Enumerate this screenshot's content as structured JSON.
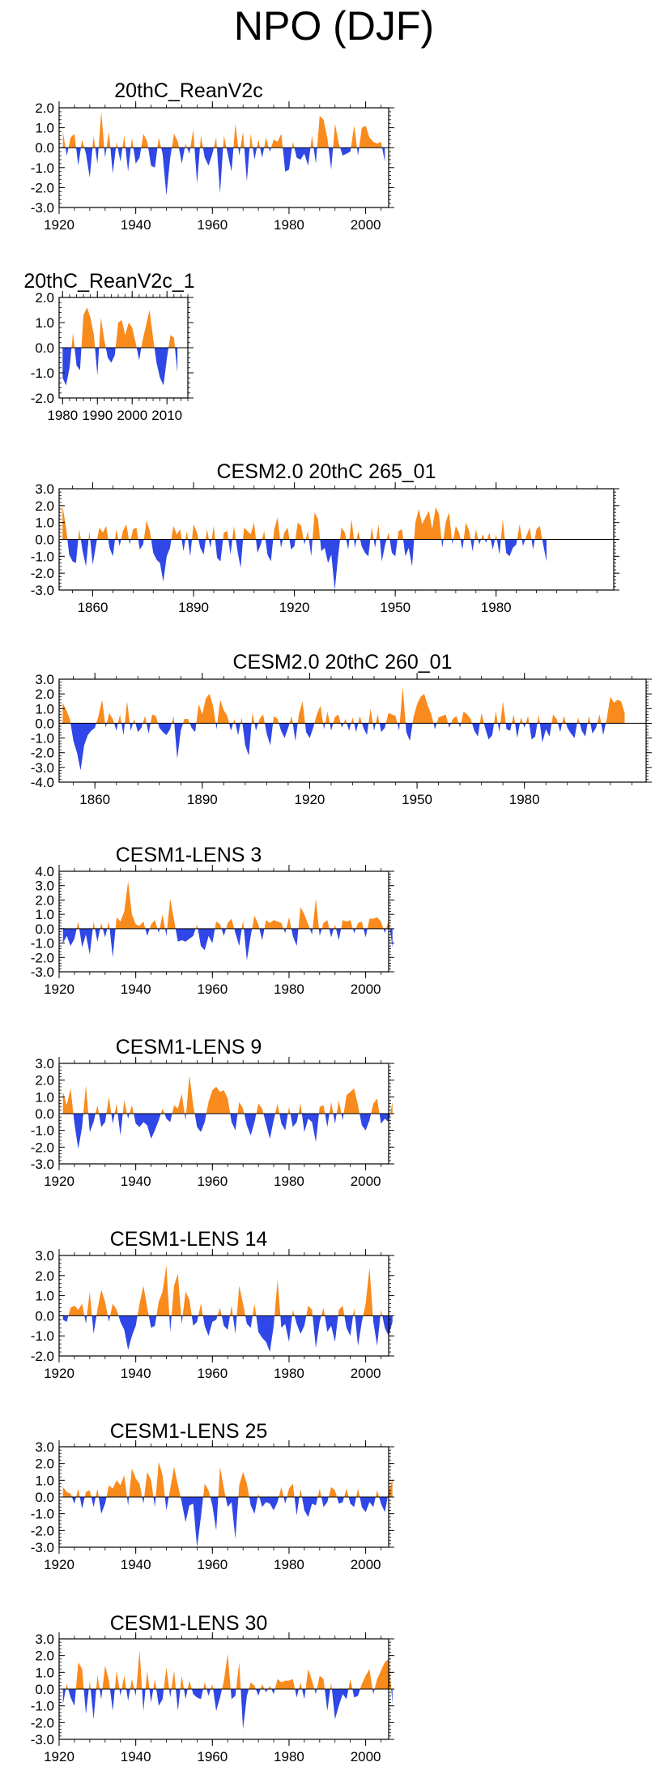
{
  "title": "NPO (DJF)",
  "colors": {
    "positive": "#f98a1c",
    "negative": "#2f47e6",
    "axis": "#000000"
  },
  "chart_data": [
    {
      "type": "area",
      "title": "20thC_ReanV2c",
      "xlim": [
        1920,
        2006
      ],
      "ylim": [
        -3.0,
        2.0
      ],
      "yticks": [
        -3.0,
        -2.0,
        -1.0,
        0.0,
        1.0,
        2.0
      ],
      "ytick_labels": [
        "-3.0",
        "-2.0",
        "-1.0",
        "0.0",
        "1.0",
        "2.0"
      ],
      "xticks": [
        1920,
        1940,
        1960,
        1980,
        2000
      ],
      "xtick_labels": [
        "1920",
        "1940",
        "1960",
        "1980",
        "2000"
      ],
      "x_start": 1921,
      "values": [
        0.8,
        -0.4,
        0.5,
        0.7,
        -0.9,
        0.4,
        -0.3,
        -1.5,
        0.6,
        -0.8,
        1.8,
        -0.5,
        0.8,
        -1.3,
        0.3,
        -0.7,
        0.6,
        -1.2,
        0.5,
        -0.8,
        -0.5,
        0.7,
        0.3,
        -0.9,
        -1.0,
        0.5,
        -0.3,
        -2.4,
        -0.5,
        0.7,
        0.3,
        -0.8,
        0.2,
        -0.3,
        0.9,
        -1.8,
        0.6,
        -0.5,
        -0.9,
        -0.3,
        0.5,
        -2.3,
        0.6,
        -0.3,
        -1.2,
        1.2,
        -0.4,
        0.8,
        -1.7,
        0.7,
        -0.6,
        0.4,
        -0.5,
        0.5,
        -0.2,
        0.4,
        0.3,
        0.7,
        -1.2,
        -1.1,
        0.3,
        -0.5,
        -0.6,
        -0.3,
        -0.9,
        0.6,
        -0.8,
        1.6,
        1.4,
        0.5,
        -1.1,
        1.2,
        0.2,
        -0.4,
        -0.3,
        -0.2,
        1.1,
        -0.4,
        1.0,
        1.1,
        0.5,
        0.3,
        0.2,
        0.3,
        -0.7
      ]
    },
    {
      "type": "area",
      "title": "20thC_ReanV2c_1",
      "xlim": [
        1979,
        2016
      ],
      "ylim": [
        -2.0,
        2.0
      ],
      "yticks": [
        -2.0,
        -1.0,
        0.0,
        1.0,
        2.0
      ],
      "ytick_labels": [
        "-2.0",
        "-1.0",
        "0.0",
        "1.0",
        "2.0"
      ],
      "xticks": [
        1980,
        1990,
        2000,
        2010
      ],
      "xtick_labels": [
        "1980",
        "1990",
        "2000",
        "2010"
      ],
      "x_start": 1980,
      "values": [
        -1.2,
        -1.5,
        -0.8,
        0.6,
        -0.7,
        -0.9,
        1.3,
        1.6,
        1.2,
        0.5,
        -1.1,
        1.2,
        0.3,
        -0.4,
        -0.6,
        -0.3,
        1.0,
        1.1,
        0.5,
        1.0,
        0.8,
        0.2,
        -0.5,
        0.3,
        0.9,
        1.5,
        0.4,
        -0.6,
        -1.2,
        -1.5,
        -0.4,
        0.5,
        0.4,
        -1.0
      ]
    },
    {
      "type": "area",
      "title": "CESM2.0 20thC 265_01",
      "xlim": [
        1850,
        2015
      ],
      "ylim": [
        -3.0,
        3.0
      ],
      "yticks": [
        -3.0,
        -2.0,
        -1.0,
        0.0,
        1.0,
        2.0,
        3.0
      ],
      "ytick_labels": [
        "-3.0",
        "-2.0",
        "-1.0",
        "0.0",
        "1.0",
        "2.0",
        "3.0"
      ],
      "xticks": [
        1860,
        1890,
        1920,
        1950,
        1980
      ],
      "xtick_labels": [
        "1860",
        "1890",
        "1920",
        "1950",
        "1980"
      ],
      "x_start": 1851,
      "values": [
        2.0,
        0.8,
        -0.9,
        -1.3,
        -1.4,
        0.6,
        -0.7,
        -1.6,
        0.5,
        -1.5,
        -0.3,
        0.7,
        0.4,
        0.8,
        -0.5,
        -1.0,
        0.6,
        -0.4,
        0.5,
        0.9,
        -0.3,
        0.6,
        0.7,
        -0.6,
        -0.3,
        1.1,
        0.5,
        -0.8,
        -1.2,
        -1.4,
        -2.5,
        -1.0,
        -0.5,
        0.8,
        0.3,
        0.6,
        -0.7,
        0.5,
        -1.0,
        0.9,
        0.4,
        -0.5,
        -0.9,
        0.6,
        -0.5,
        0.8,
        -1.1,
        -1.3,
        0.4,
        0.5,
        -0.9,
        0.8,
        -0.6,
        -1.7,
        0.7,
        0.5,
        0.3,
        1.0,
        -0.8,
        -0.3,
        0.5,
        -0.9,
        -1.3,
        0.6,
        1.3,
        -0.5,
        0.4,
        0.7,
        -0.6,
        -0.4,
        1.0,
        0.8,
        -0.3,
        0.5,
        -1.0,
        1.6,
        1.2,
        -0.7,
        -0.5,
        -1.4,
        -0.9,
        -3.0,
        -1.0,
        0.7,
        0.4,
        -0.6,
        1.2,
        -0.5,
        0.5,
        -0.4,
        -0.8,
        -1.0,
        0.7,
        -0.5,
        0.9,
        -1.3,
        -0.3,
        0.4,
        -0.8,
        -1.0,
        0.5,
        0.6,
        -1.0,
        -0.5,
        -1.6,
        1.0,
        1.8,
        0.9,
        1.3,
        1.7,
        0.6,
        1.9,
        1.5,
        -0.5,
        1.0,
        1.6,
        -0.3,
        0.8,
        0.4,
        -0.6,
        1.0,
        0.5,
        -0.7,
        0.6,
        -0.3,
        0.3,
        -0.2,
        0.4,
        -0.6,
        0.3,
        -0.9,
        1.2,
        -0.8,
        -1.0,
        -0.5,
        -0.3,
        0.9,
        -0.4,
        0.2,
        0.7,
        -0.6,
        0.6,
        0.8,
        -0.3,
        -1.3
      ]
    },
    {
      "type": "area",
      "title": "CESM2.0 20thC 260_01",
      "xlim": [
        1850,
        2014
      ],
      "ylim": [
        -4.0,
        3.0
      ],
      "yticks": [
        -4.0,
        -3.0,
        -2.0,
        -1.0,
        0.0,
        1.0,
        2.0,
        3.0
      ],
      "ytick_labels": [
        "-4.0",
        "-3.0",
        "-2.0",
        "-1.0",
        "0.0",
        "1.0",
        "2.0",
        "3.0"
      ],
      "xticks": [
        1860,
        1890,
        1920,
        1950,
        1980
      ],
      "xtick_labels": [
        "1860",
        "1890",
        "1920",
        "1950",
        "1980"
      ],
      "x_start": 1851,
      "values": [
        1.4,
        0.9,
        0.3,
        -1.2,
        -2.0,
        -3.2,
        -1.5,
        -0.8,
        -0.5,
        -0.3,
        0.5,
        1.6,
        -0.3,
        0.7,
        0.3,
        -0.5,
        0.6,
        -0.8,
        1.5,
        -0.5,
        0.3,
        -0.6,
        -0.3,
        0.5,
        -0.7,
        0.6,
        0.5,
        -0.3,
        -0.6,
        -0.8,
        -0.4,
        0.5,
        -2.4,
        -0.5,
        0.3,
        0.3,
        -0.3,
        -0.6,
        1.3,
        0.6,
        1.7,
        2.0,
        1.2,
        -0.4,
        1.6,
        0.9,
        0.5,
        -0.5,
        0.3,
        -0.8,
        0.4,
        -1.5,
        -2.2,
        0.7,
        -0.5,
        0.3,
        0.6,
        -0.7,
        -1.5,
        0.5,
        0.3,
        -0.5,
        -1.0,
        -0.3,
        0.5,
        -1.2,
        0.6,
        1.5,
        -0.6,
        -1.0,
        -0.3,
        0.6,
        1.2,
        -0.4,
        0.8,
        -0.5,
        0.4,
        0.6,
        -0.3,
        0.3,
        -0.5,
        0.4,
        -0.6,
        0.5,
        -0.3,
        -0.8,
        1.0,
        -0.5,
        0.6,
        -0.6,
        -0.3,
        0.7,
        0.6,
        0.5,
        -0.5,
        2.5,
        -0.6,
        -1.2,
        0.4,
        1.3,
        1.8,
        2.0,
        1.2,
        0.6,
        -0.4,
        0.4,
        0.5,
        0.6,
        -0.3,
        0.3,
        0.5,
        -0.3,
        0.8,
        0.6,
        0.3,
        -0.5,
        -0.9,
        0.7,
        -0.3,
        -1.1,
        -0.8,
        0.8,
        -0.6,
        1.5,
        -0.4,
        -0.5,
        0.6,
        -1.0,
        0.4,
        -0.3,
        0.5,
        -1.1,
        -0.9,
        0.6,
        -1.3,
        -0.4,
        -0.9,
        0.6,
        0.3,
        -0.6,
        0.5,
        -0.3,
        -0.7,
        -1.0,
        0.4,
        -0.5,
        -0.9,
        0.5,
        -0.7,
        -0.3,
        0.6,
        -0.8,
        0.3,
        1.8,
        1.4,
        1.6,
        1.5,
        0.7
      ]
    },
    {
      "type": "area",
      "title": "CESM1-LENS 3",
      "xlim": [
        1920,
        2006
      ],
      "ylim": [
        -3.0,
        4.0
      ],
      "yticks": [
        -3.0,
        -2.0,
        -1.0,
        0.0,
        1.0,
        2.0,
        3.0,
        4.0
      ],
      "ytick_labels": [
        "-3.0",
        "-2.0",
        "-1.0",
        "0.0",
        "1.0",
        "2.0",
        "3.0",
        "4.0"
      ],
      "xticks": [
        1920,
        1940,
        1960,
        1980,
        2000
      ],
      "xtick_labels": [
        "1920",
        "1940",
        "1960",
        "1980",
        "2000"
      ],
      "x_start": 1921,
      "values": [
        -1.0,
        -0.5,
        -1.2,
        -0.7,
        0.5,
        -1.3,
        -0.4,
        -1.8,
        0.5,
        -0.9,
        0.4,
        -0.6,
        0.5,
        -2.0,
        0.8,
        0.5,
        1.2,
        3.3,
        1.0,
        0.3,
        0.2,
        0.5,
        -0.5,
        0.3,
        0.6,
        -0.3,
        1.0,
        -0.5,
        2.1,
        0.6,
        -0.9,
        -0.8,
        -0.9,
        -0.7,
        -0.5,
        0.3,
        -1.2,
        -1.5,
        -0.5,
        -1.0,
        0.5,
        0.3,
        -0.5,
        0.4,
        0.7,
        -0.3,
        -1.2,
        0.6,
        -2.2,
        -0.5,
        0.9,
        0.3,
        -0.8,
        0.6,
        0.4,
        0.6,
        0.5,
        0.4,
        -0.3,
        0.8,
        -0.5,
        -1.2,
        1.5,
        1.0,
        0.3,
        -0.4,
        2.1,
        -0.5,
        0.4,
        0.6,
        -0.6,
        0.3,
        -0.8,
        0.6,
        0.5,
        0.6,
        -0.3,
        0.4,
        0.5,
        -0.6,
        0.7,
        0.7,
        0.8,
        0.5,
        -0.3,
        0.6,
        -1.3
      ]
    },
    {
      "type": "area",
      "title": "CESM1-LENS 9",
      "xlim": [
        1920,
        2006
      ],
      "ylim": [
        -3.0,
        3.0
      ],
      "yticks": [
        -3.0,
        -2.0,
        -1.0,
        0.0,
        1.0,
        2.0,
        3.0
      ],
      "ytick_labels": [
        "-3.0",
        "-2.0",
        "-1.0",
        "0.0",
        "1.0",
        "2.0",
        "3.0"
      ],
      "xticks": [
        1920,
        1940,
        1960,
        1980,
        2000
      ],
      "xtick_labels": [
        "1920",
        "1940",
        "1960",
        "1980",
        "2000"
      ],
      "x_start": 1921,
      "values": [
        1.3,
        0.5,
        1.5,
        -0.6,
        -2.1,
        -0.8,
        1.7,
        -1.1,
        -0.5,
        0.5,
        -0.8,
        -0.5,
        1.0,
        -0.6,
        0.6,
        -1.3,
        0.8,
        -0.3,
        0.5,
        -0.6,
        -0.8,
        -0.5,
        -0.7,
        -1.5,
        -1.0,
        -0.4,
        0.3,
        -0.3,
        -0.5,
        0.5,
        0.3,
        1.2,
        -0.4,
        2.3,
        0.5,
        -0.8,
        -1.1,
        -0.5,
        0.7,
        1.4,
        1.6,
        1.3,
        1.4,
        0.9,
        -0.5,
        -1.0,
        0.7,
        0.3,
        -0.7,
        -1.3,
        -0.5,
        0.6,
        0.3,
        -0.6,
        -1.5,
        -0.4,
        0.6,
        -0.6,
        -1.0,
        0.4,
        -0.8,
        -0.5,
        0.6,
        -1.1,
        -0.3,
        -0.5,
        -1.7,
        0.4,
        0.5,
        -0.8,
        0.7,
        -0.6,
        0.8,
        -0.4,
        1.1,
        1.3,
        1.5,
        0.5,
        -0.7,
        -1.0,
        -0.4,
        0.6,
        0.9,
        -0.6,
        -0.3,
        -0.5,
        0.7
      ]
    },
    {
      "type": "area",
      "title": "CESM1-LENS 14",
      "xlim": [
        1920,
        2006
      ],
      "ylim": [
        -2.0,
        3.0
      ],
      "yticks": [
        -2.0,
        -1.0,
        0.0,
        1.0,
        2.0,
        3.0
      ],
      "ytick_labels": [
        "-2.0",
        "-1.0",
        "0.0",
        "1.0",
        "2.0",
        "3.0"
      ],
      "xticks": [
        1920,
        1940,
        1960,
        1980,
        2000
      ],
      "xtick_labels": [
        "1920",
        "1940",
        "1960",
        "1980",
        "2000"
      ],
      "x_start": 1921,
      "values": [
        -0.2,
        -0.3,
        0.4,
        0.5,
        0.3,
        0.6,
        -0.4,
        1.2,
        -0.9,
        0.3,
        1.3,
        0.7,
        -0.3,
        0.6,
        0.3,
        -0.3,
        -0.7,
        -1.7,
        -1.0,
        -0.5,
        0.6,
        1.5,
        0.4,
        -0.6,
        -0.5,
        0.7,
        1.2,
        2.5,
        -0.8,
        1.5,
        2.1,
        -0.4,
        1.2,
        0.8,
        -0.5,
        -0.3,
        0.6,
        -0.5,
        -1.0,
        -0.3,
        -0.2,
        0.4,
        -0.5,
        -0.7,
        0.5,
        -0.9,
        1.5,
        0.6,
        -0.4,
        -0.6,
        0.6,
        -0.8,
        -1.1,
        -1.3,
        -1.8,
        -0.5,
        1.8,
        -0.6,
        -0.4,
        -1.3,
        0.3,
        -0.4,
        -0.9,
        -0.5,
        0.5,
        0.3,
        -1.6,
        -0.3,
        0.4,
        -0.8,
        -0.5,
        -1.3,
        0.3,
        0.5,
        -0.6,
        -1.0,
        0.4,
        -1.5,
        -0.3,
        0.6,
        2.4,
        -0.3,
        -1.5,
        0.3,
        -0.6,
        -1.0,
        -0.3
      ]
    },
    {
      "type": "area",
      "title": "CESM1-LENS 25",
      "xlim": [
        1920,
        2006
      ],
      "ylim": [
        -3.0,
        3.0
      ],
      "yticks": [
        -3.0,
        -2.0,
        -1.0,
        0.0,
        1.0,
        2.0,
        3.0
      ],
      "ytick_labels": [
        "-3.0",
        "-2.0",
        "-1.0",
        "0.0",
        "1.0",
        "2.0",
        "3.0"
      ],
      "xticks": [
        1920,
        1940,
        1960,
        1980,
        2000
      ],
      "xtick_labels": [
        "1920",
        "1940",
        "1960",
        "1980",
        "2000"
      ],
      "x_start": 1921,
      "values": [
        0.6,
        0.3,
        0.2,
        -0.4,
        0.5,
        -0.7,
        0.3,
        0.4,
        -0.6,
        0.5,
        -1.0,
        -0.4,
        0.7,
        0.5,
        1.0,
        0.7,
        1.3,
        -0.5,
        1.7,
        1.1,
        0.8,
        -0.4,
        1.5,
        1.0,
        -0.6,
        2.1,
        1.3,
        -0.8,
        0.5,
        1.8,
        0.7,
        -0.3,
        -1.5,
        -0.5,
        -0.4,
        -3.0,
        -1.2,
        0.8,
        0.4,
        -0.5,
        -2.0,
        1.8,
        0.5,
        -0.6,
        -0.3,
        -2.5,
        0.7,
        1.5,
        0.8,
        -0.5,
        -1.0,
        0.2,
        -0.6,
        -0.3,
        -0.4,
        -0.8,
        -0.3,
        0.6,
        -0.4,
        0.5,
        0.8,
        -1.1,
        0.5,
        -0.8,
        -1.2,
        -0.4,
        -0.5,
        0.5,
        -0.6,
        -0.3,
        0.6,
        0.4,
        -0.4,
        -0.3,
        0.5,
        -0.4,
        -0.6,
        0.5,
        -0.6,
        -0.9,
        -0.3,
        -0.6,
        0.4,
        -0.4,
        -0.9,
        0.3,
        1.1
      ]
    },
    {
      "type": "area",
      "title": "CESM1-LENS 30",
      "xlim": [
        1920,
        2006
      ],
      "ylim": [
        -3.0,
        3.0
      ],
      "yticks": [
        -3.0,
        -2.0,
        -1.0,
        0.0,
        1.0,
        2.0,
        3.0
      ],
      "ytick_labels": [
        "-3.0",
        "-2.0",
        "-1.0",
        "0.0",
        "1.0",
        "2.0",
        "3.0"
      ],
      "xticks": [
        1920,
        1940,
        1960,
        1980,
        2000
      ],
      "xtick_labels": [
        "1920",
        "1940",
        "1960",
        "1980",
        "2000"
      ],
      "x_start": 1921,
      "values": [
        -0.9,
        0.3,
        -0.5,
        -1.0,
        1.6,
        1.2,
        -1.5,
        0.5,
        -1.8,
        0.8,
        -0.6,
        1.4,
        0.5,
        -1.3,
        1.1,
        -0.4,
        0.8,
        -0.7,
        0.6,
        -0.4,
        2.3,
        -1.3,
        1.1,
        -0.8,
        0.6,
        -1.0,
        -0.6,
        1.3,
        -0.5,
        1.1,
        -1.3,
        0.8,
        -0.6,
        0.5,
        -0.3,
        -0.5,
        -0.6,
        0.4,
        -0.4,
        0.3,
        -1.3,
        -0.5,
        0.5,
        2.1,
        -0.6,
        -0.4,
        1.6,
        -2.4,
        -0.4,
        0.4,
        0.2,
        -0.4,
        0.3,
        -0.2,
        0.2,
        -0.3,
        0.6,
        0.4,
        0.5,
        0.5,
        0.6,
        -0.5,
        0.4,
        -0.6,
        1.2,
        0.5,
        -0.3,
        0.8,
        0.6,
        -1.3,
        0.4,
        -1.8,
        -1.0,
        -0.3,
        -0.6,
        0.6,
        -0.5,
        -0.4,
        0.3,
        0.8,
        1.2,
        -0.3,
        0.6,
        1.1,
        1.6,
        1.8,
        -0.9
      ]
    }
  ]
}
